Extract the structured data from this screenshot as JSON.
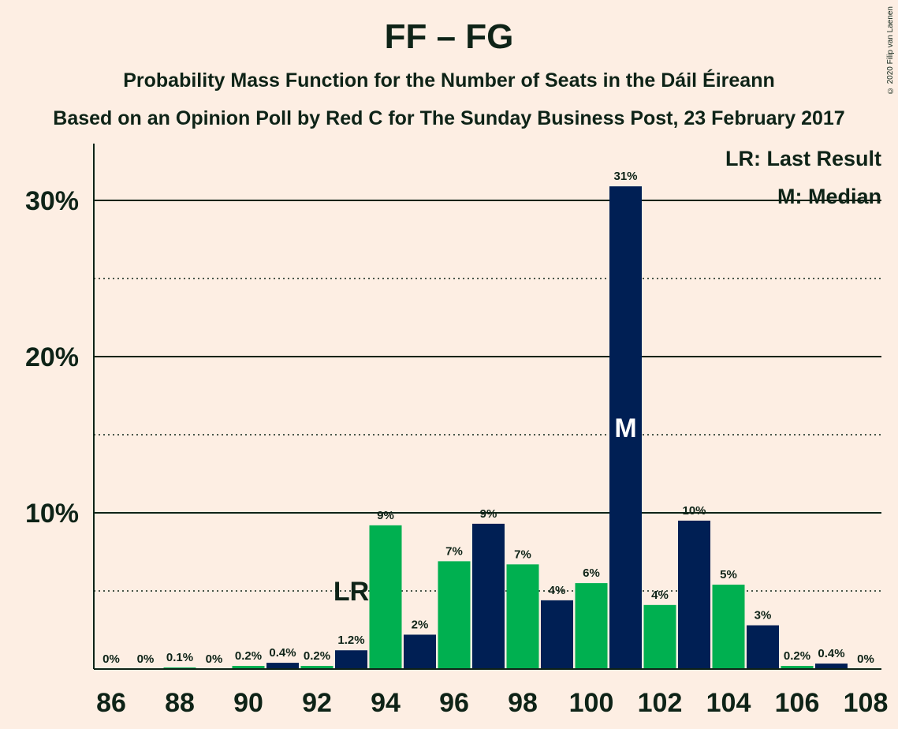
{
  "title": "FF – FG",
  "subtitle": "Probability Mass Function for the Number of Seats in the Dáil Éireann",
  "subtitle2": "Based on an Opinion Poll by Red C for The Sunday Business Post, 23 February 2017",
  "copyright": "© 2020 Filip van Laenen",
  "legend": {
    "last_result": "LR: Last Result",
    "median": "M: Median"
  },
  "colors": {
    "background": "#FDEEE3",
    "navy": "#001F54",
    "green": "#00B050",
    "text": "#0E2317"
  },
  "chart_data": {
    "type": "bar",
    "x": [
      86,
      87,
      88,
      89,
      90,
      91,
      92,
      93,
      94,
      95,
      96,
      97,
      98,
      99,
      100,
      101,
      102,
      103,
      104,
      105,
      106,
      107,
      108
    ],
    "values": [
      0,
      0,
      0.1,
      0,
      0.2,
      0.4,
      0.2,
      1.2,
      9.2,
      2.2,
      6.9,
      9.3,
      6.7,
      4.4,
      5.5,
      30.9,
      4.1,
      9.5,
      5.4,
      2.8,
      0.2,
      0.35,
      0
    ],
    "labels": [
      "0%",
      "0%",
      "0.1%",
      "0%",
      "0.2%",
      "0.4%",
      "0.2%",
      "1.2%",
      "9%",
      "2%",
      "7%",
      "9%",
      "7%",
      "4%",
      "6%",
      "31%",
      "4%",
      "10%",
      "5%",
      "3%",
      "0.2%",
      "0.4%",
      "0%"
    ],
    "xticks": [
      86,
      88,
      90,
      92,
      94,
      96,
      98,
      100,
      102,
      104,
      106,
      108
    ],
    "xtick_labels": [
      "86",
      "88",
      "90",
      "92",
      "94",
      "96",
      "98",
      "100",
      "102",
      "104",
      "106",
      "108"
    ],
    "yticks": [
      10,
      20,
      30
    ],
    "ytick_labels": [
      "10%",
      "20%",
      "30%"
    ],
    "ylim": [
      0,
      33.5
    ],
    "minor_grid": [
      5,
      15,
      25
    ],
    "last_result": 93,
    "last_result_label": "LR",
    "median": 101,
    "median_label": "M"
  }
}
